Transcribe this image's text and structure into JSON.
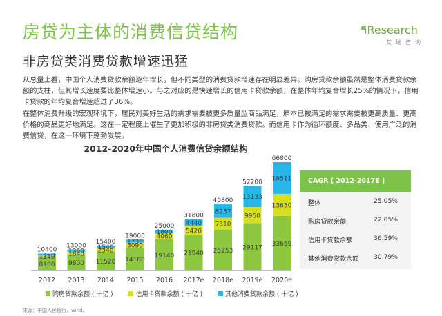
{
  "header": {
    "title": "房贷为主体的消费信贷结构",
    "subtitle": "非房贷类消费贷款增速迅猛"
  },
  "logo": {
    "brand": "iResearch",
    "tagline": "艾瑞咨询"
  },
  "body": {
    "paragraph1": "从总量上看，中国个人消费贷款余额逐年增长，但不同类型的消费贷款增速存在明显差异。购房贷款余额虽然是整体消费贷款余额的支柱，但其增长速度要比整体增速小。与之对应的是快速增长的信用卡贷款余额，在整体年均复合增长25%的情况下，信用卡贷款的年均复合增速超过了36%。",
    "paragraph2": "在整体消费升级的宏观环境下，居民对美好生活的需求需要被更多质量型商品满足，原本已被满足的需求需要被更高质量、更高价格的商品更好地满足。这在一定程度上催生了更加积极的非房贷类消费贷款。而信用卡作为循环额度、多品类、使用广泛的消费信贷，在这一环境下蓬勃发展。"
  },
  "cagr_table": {
    "header": "CAGR ( 2012-2017E )",
    "rows": [
      {
        "name": "整体",
        "value": "25.05%"
      },
      {
        "name": "购房贷款余额",
        "value": "22.05%"
      },
      {
        "name": "信用卡贷款余额",
        "value": "36.59%"
      },
      {
        "name": "其他消费贷款余额",
        "value": "30.79%"
      }
    ]
  },
  "source": "来源：中国人民银行，wind。",
  "colors": {
    "accent": "#7dc24b",
    "housing": "#8dc63f",
    "credit": "#d7df23",
    "other": "#29b6e8"
  },
  "chart_data": {
    "type": "bar",
    "stacked": true,
    "title": "2012-2020年中国个人消费信贷余额结构",
    "categories": [
      "2012",
      "2013",
      "2014",
      "2015",
      "2016",
      "2017e",
      "2018e",
      "2019e",
      "2020e"
    ],
    "totals": [
      "10400",
      "13000",
      "15400",
      "19000",
      "25000",
      "31800",
      "40800",
      "52200",
      "66800"
    ],
    "series": [
      {
        "name": "购房贷款余额 ( 十亿 )",
        "values": [
          8100,
          9800,
          11520,
          14180,
          19140,
          21940,
          25253,
          29117,
          33659
        ],
        "color": "#8dc63f"
      },
      {
        "name": "信用卡贷款余额 ( 十亿 )",
        "values": [
          1140,
          1840,
          2340,
          3090,
          4060,
          5420,
          7310,
          9950,
          13630
        ],
        "color": "#d7df23"
      },
      {
        "name": "其他消费贷款余额 ( 十亿 )",
        "values": [
          1160,
          1360,
          1540,
          1730,
          1800,
          4440,
          8237,
          13133,
          19511
        ],
        "color": "#29b6e8"
      }
    ],
    "legend_position": "bottom",
    "grid": false
  }
}
